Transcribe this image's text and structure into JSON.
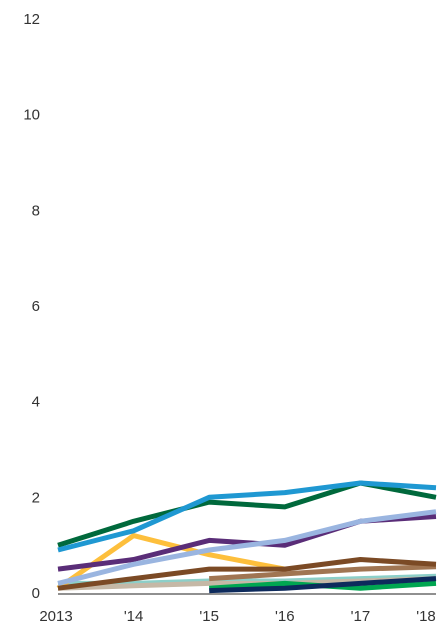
{
  "chart_data": {
    "type": "line",
    "title": "",
    "xlabel": "",
    "ylabel": "",
    "x": [
      2013,
      2014,
      2015,
      2016,
      2017,
      2018
    ],
    "x_tick_labels": [
      "2013",
      "'14",
      "'15",
      "'16",
      "'17",
      "'18"
    ],
    "y_ticks": [
      0,
      2,
      4,
      6,
      8,
      10,
      12
    ],
    "y_tick_labels": [
      "0",
      "2",
      "4",
      "6",
      "8",
      "10",
      "12"
    ],
    "ylim": [
      0,
      12
    ],
    "xlim": [
      2013,
      2018
    ],
    "grid": false,
    "series": [
      {
        "color": "#8ccfc8",
        "values": [
          0.2,
          0.2,
          0.25,
          0.25,
          0.3,
          0.35
        ]
      },
      {
        "color": "#c5b8a6",
        "values": [
          0.1,
          0.15,
          0.2,
          0.2,
          0.25,
          0.3
        ]
      },
      {
        "color": "#00a651",
        "values": [
          null,
          null,
          0.1,
          0.2,
          0.1,
          0.2
        ]
      },
      {
        "color": "#0d2a5c",
        "values": [
          null,
          null,
          0.05,
          0.1,
          0.2,
          0.3
        ]
      },
      {
        "color": "#a07552",
        "values": [
          null,
          null,
          0.3,
          0.4,
          0.5,
          0.55
        ]
      },
      {
        "color": "#fdbf3c",
        "values": [
          0.1,
          1.2,
          0.8,
          0.5,
          null,
          null
        ]
      },
      {
        "color": "#7b4a25",
        "values": [
          0.1,
          0.3,
          0.5,
          0.5,
          0.7,
          0.6
        ]
      },
      {
        "color": "#5a2d78",
        "values": [
          0.5,
          0.7,
          1.1,
          1.0,
          1.5,
          1.6
        ]
      },
      {
        "color": "#9ab5e0",
        "values": [
          0.2,
          0.6,
          0.9,
          1.1,
          1.5,
          1.7
        ]
      },
      {
        "color": "#00693c",
        "values": [
          1.0,
          1.5,
          1.9,
          1.8,
          2.3,
          2.0
        ]
      },
      {
        "color": "#1f98d2",
        "values": [
          0.9,
          1.3,
          2.0,
          2.1,
          2.3,
          2.2
        ]
      }
    ]
  }
}
